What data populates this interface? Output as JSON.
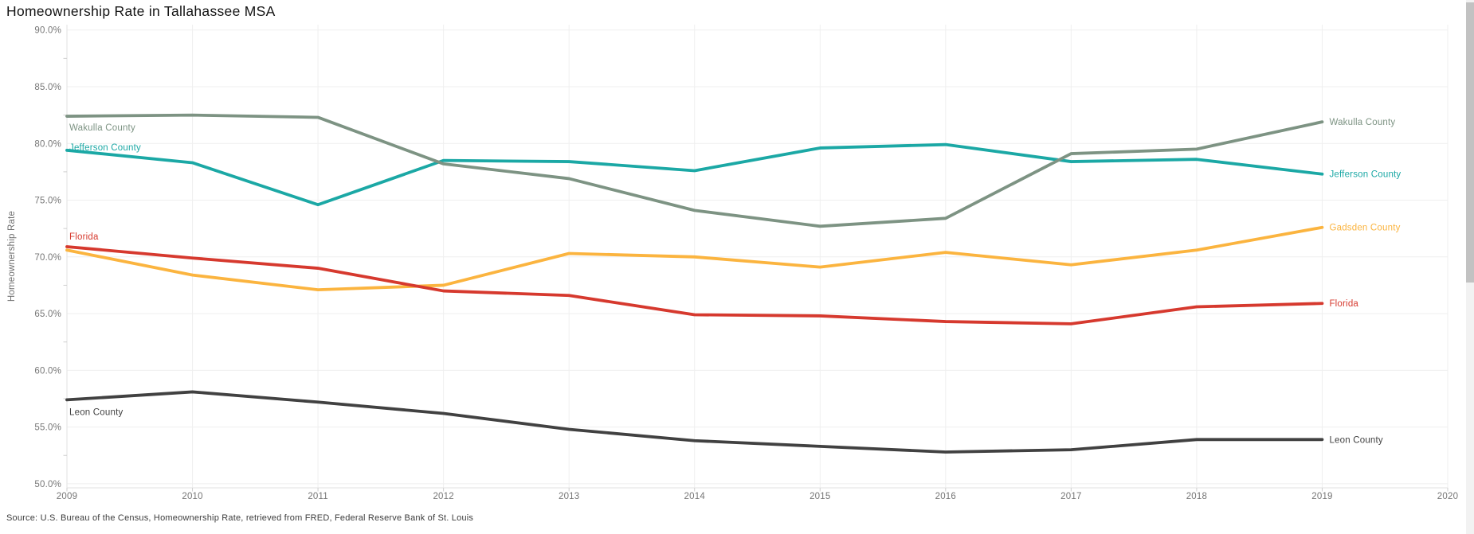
{
  "title": "Homeownership Rate in Tallahassee MSA",
  "y_axis_label": "Homeownership Rate",
  "source": "Source: U.S. Bureau of the Census, Homeownership Rate, retrieved from FRED, Federal Reserve Bank of St. Louis",
  "chart_data": {
    "type": "line",
    "title": "Homeownership Rate in Tallahassee MSA",
    "xlabel": "",
    "ylabel": "Homeownership Rate",
    "x": [
      2009,
      2010,
      2011,
      2012,
      2013,
      2014,
      2015,
      2016,
      2017,
      2018,
      2019
    ],
    "x_ticks": [
      2009,
      2010,
      2011,
      2012,
      2013,
      2014,
      2015,
      2016,
      2017,
      2018,
      2019,
      2020
    ],
    "xlim": [
      2009,
      2020
    ],
    "ylim": [
      50,
      90
    ],
    "grid": true,
    "legend_position": "line-end-labels",
    "y_ticks": [
      {
        "value": 90,
        "label": "90.0%"
      },
      {
        "value": 85,
        "label": "85.0%"
      },
      {
        "value": 80,
        "label": "80.0%"
      },
      {
        "value": 75,
        "label": "75.0%"
      },
      {
        "value": 70,
        "label": "70.0%"
      },
      {
        "value": 65,
        "label": "65.0%"
      },
      {
        "value": 60,
        "label": "60.0%"
      },
      {
        "value": 55,
        "label": "55.0%"
      },
      {
        "value": 50,
        "label": "50.0%"
      }
    ],
    "series": [
      {
        "name": "Jefferson County",
        "color": "#1ba8a5",
        "left_label": true,
        "values": [
          79.4,
          78.3,
          74.6,
          78.5,
          78.4,
          77.6,
          79.6,
          79.9,
          78.4,
          78.6,
          77.3
        ]
      },
      {
        "name": "Wakulla County",
        "color": "#7d9383",
        "left_label": true,
        "values": [
          82.4,
          82.5,
          82.3,
          78.2,
          76.9,
          74.1,
          72.7,
          73.4,
          79.1,
          79.5,
          81.9
        ]
      },
      {
        "name": "Gadsden County",
        "color": "#fbb43f",
        "left_label": false,
        "values": [
          70.6,
          68.4,
          67.1,
          67.5,
          70.3,
          70.0,
          69.1,
          70.4,
          69.3,
          70.6,
          72.6
        ]
      },
      {
        "name": "Florida",
        "color": "#d6392e",
        "left_label": true,
        "values": [
          70.9,
          69.9,
          69.0,
          67.0,
          66.6,
          64.9,
          64.8,
          64.3,
          64.1,
          65.6,
          65.9
        ]
      },
      {
        "name": "Leon County",
        "color": "#414141",
        "left_label": true,
        "values": [
          57.4,
          58.1,
          57.2,
          56.2,
          54.8,
          53.8,
          53.3,
          52.8,
          53.0,
          53.9,
          53.9
        ]
      }
    ]
  }
}
